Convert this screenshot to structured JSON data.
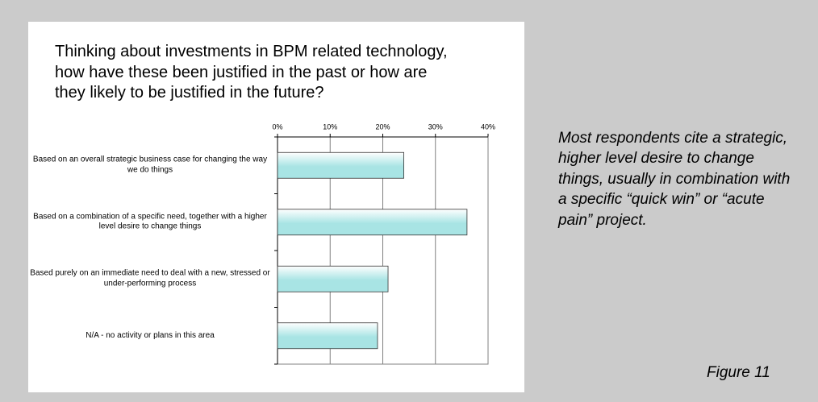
{
  "chart_data": {
    "type": "hbar",
    "title": "Thinking about investments in BPM related technology, how have these been justified in the past or how are they likely to be justified in the future?",
    "categories": [
      "Based on an overall strategic business case for changing the way we do things",
      "Based on a combination of a specific need, together with a higher level desire to change things",
      "Based purely on an immediate need to deal with a new, stressed or under-performing process",
      "N/A - no activity or plans in this area"
    ],
    "values": [
      24,
      36,
      21,
      19
    ],
    "color": "#a8e4e4",
    "xlim": [
      0,
      40
    ],
    "xticks": [
      {
        "value": 0,
        "label": "0%"
      },
      {
        "value": 10,
        "label": "10%"
      },
      {
        "value": 20,
        "label": "20%"
      },
      {
        "value": 30,
        "label": "30%"
      },
      {
        "value": 40,
        "label": "40%"
      }
    ],
    "grid": true
  },
  "annotation": "Most respondents cite a strategic, higher level desire to change things, usually in combination with a specific “quick win” or “acute pain” project.",
  "figure_label": "Figure 11"
}
